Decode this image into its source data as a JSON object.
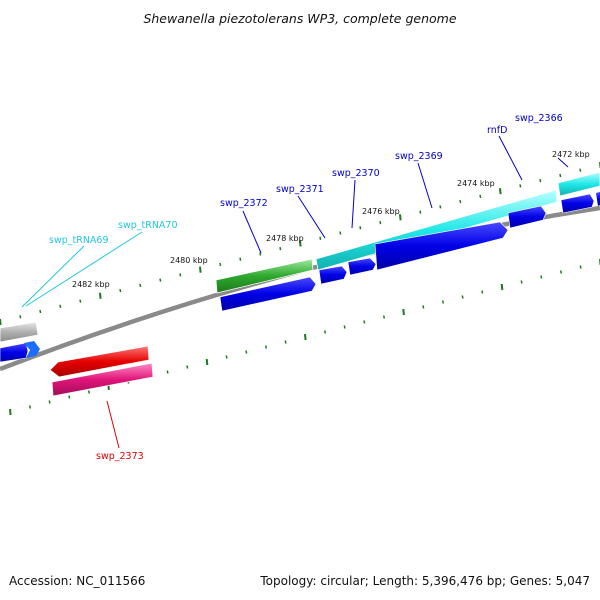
{
  "title": "Shewanella piezotolerans WP3, complete genome",
  "footer": {
    "accession": "Accession: NC_011566",
    "summary": "Topology: circular; Length: 5,396,476 bp; Genes: 5,047"
  },
  "scale_labels": [
    "2472 kbp",
    "2474 kbp",
    "2476 kbp",
    "2478 kbp",
    "2480 kbp",
    "2482 kbp"
  ],
  "gene_labels": [
    {
      "id": "swp_2366",
      "text": "swp_2366",
      "color": "#0000cc"
    },
    {
      "id": "rnfd",
      "text": "rnfD",
      "color": "#0000cc"
    },
    {
      "id": "swp_2369",
      "text": "swp_2369",
      "color": "#0000cc"
    },
    {
      "id": "swp_2370",
      "text": "swp_2370",
      "color": "#0000cc"
    },
    {
      "id": "swp_2371",
      "text": "swp_2371",
      "color": "#0000cc"
    },
    {
      "id": "swp_2372",
      "text": "swp_2372",
      "color": "#0000cc"
    },
    {
      "id": "swp_trna70",
      "text": "swp_tRNA70",
      "color": "#22c5e0"
    },
    {
      "id": "swp_trna69",
      "text": "swp_tRNA69",
      "color": "#22c5e0"
    },
    {
      "id": "swp_2373",
      "text": "swp_2373",
      "color": "#dd0000"
    }
  ],
  "colors": {
    "cds_forward": "#0000e6",
    "cyan_feature": "#22e8e8",
    "green_feature": "#2ea82e",
    "red_feature": "#e60000",
    "pink_feature": "#e0157a",
    "grey_feature": "#b0b0b0",
    "backbone": "#888888",
    "tick": "#1c7a1c"
  }
}
